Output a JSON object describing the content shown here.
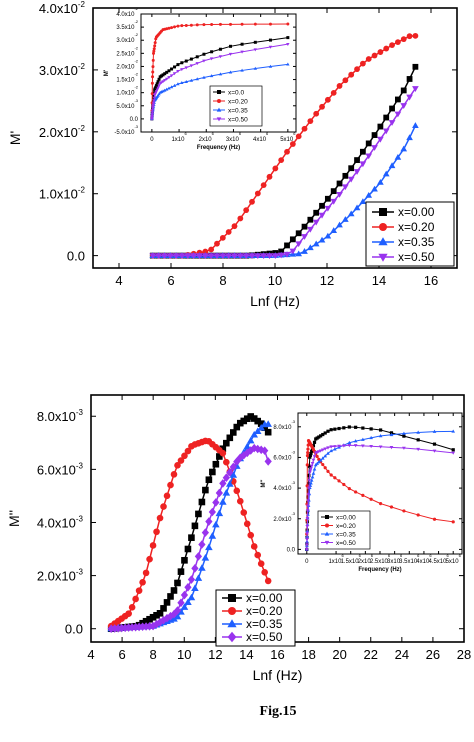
{
  "caption": "Fig.15",
  "chart_data": [
    {
      "type": "scatter",
      "ylabel": "M'",
      "xlabel": "Lnf (Hz)",
      "xlim": [
        3,
        17
      ],
      "ylim": [
        -0.002,
        0.04
      ],
      "x_ticks": [
        "4",
        "6",
        "8",
        "10",
        "12",
        "14",
        "16"
      ],
      "y_ticks": [
        {
          "v": 0,
          "m": "0.0",
          "e": ""
        },
        {
          "v": 0.01,
          "m": "1.0x10",
          "e": "-2"
        },
        {
          "v": 0.02,
          "m": "2.0x10",
          "e": "-2"
        },
        {
          "v": 0.03,
          "m": "3.0x10",
          "e": "-2"
        },
        {
          "v": 0.04,
          "m": "4.0x10",
          "e": "-2"
        }
      ],
      "legend_position": "bottom-right",
      "series": [
        {
          "name": "x=0.00",
          "color": "#000000",
          "marker": "square",
          "x_start": 5.3,
          "x_end": 15.4,
          "points": [
            [
              5.3,
              0
            ],
            [
              9.0,
              0
            ],
            [
              10.2,
              0.0005
            ],
            [
              11,
              0.004
            ],
            [
              12,
              0.009
            ],
            [
              13,
              0.0145
            ],
            [
              14,
              0.0205
            ],
            [
              15,
              0.027
            ],
            [
              15.4,
              0.0305
            ]
          ]
        },
        {
          "name": "x=0.20",
          "color": "#ee2222",
          "marker": "circle",
          "x_start": 5.3,
          "x_end": 15.4,
          "points": [
            [
              5.3,
              0
            ],
            [
              6.5,
              0
            ],
            [
              7.5,
              0.0008
            ],
            [
              8.5,
              0.005
            ],
            [
              9.5,
              0.011
            ],
            [
              10.5,
              0.017
            ],
            [
              11.5,
              0.0225
            ],
            [
              12.5,
              0.0275
            ],
            [
              13.5,
              0.0315
            ],
            [
              14.5,
              0.034
            ],
            [
              15.2,
              0.0355
            ],
            [
              15.4,
              0.0355
            ]
          ]
        },
        {
          "name": "x=0.35",
          "color": "#1f5fff",
          "marker": "triangle-up",
          "x_start": 5.3,
          "x_end": 15.4,
          "points": [
            [
              5.3,
              0
            ],
            [
              10,
              0
            ],
            [
              11,
              0.0003
            ],
            [
              12,
              0.003
            ],
            [
              13,
              0.007
            ],
            [
              14,
              0.0115
            ],
            [
              15,
              0.0175
            ],
            [
              15.4,
              0.021
            ]
          ]
        },
        {
          "name": "x=0.50",
          "color": "#9933ee",
          "marker": "triangle-down",
          "x_start": 5.3,
          "x_end": 15.4,
          "points": [
            [
              5.3,
              0
            ],
            [
              10,
              0
            ],
            [
              10.6,
              0.0003
            ],
            [
              11.5,
              0.005
            ],
            [
              12.5,
              0.01
            ],
            [
              13.5,
              0.0155
            ],
            [
              14.5,
              0.0215
            ],
            [
              15.4,
              0.027
            ]
          ]
        }
      ]
    },
    {
      "type": "scatter",
      "inset_of": 0,
      "ylabel": "M'",
      "xlabel": "Frequency (Hz)",
      "xlim": [
        -400000,
        5300000
      ],
      "ylim": [
        -0.005,
        0.04
      ],
      "x_ticks": [
        {
          "v": 0,
          "m": "0",
          "e": ""
        },
        {
          "v": 1000000,
          "m": "1x10",
          "e": "6"
        },
        {
          "v": 2000000,
          "m": "2x10",
          "e": "6"
        },
        {
          "v": 3000000,
          "m": "3x10",
          "e": "6"
        },
        {
          "v": 4000000,
          "m": "4x10",
          "e": "6"
        },
        {
          "v": 5000000,
          "m": "5x10",
          "e": "6"
        }
      ],
      "y_ticks": [
        {
          "v": -0.005,
          "m": "-5.0x10",
          "e": "-3"
        },
        {
          "v": 0,
          "m": "0.0",
          "e": ""
        },
        {
          "v": 0.005,
          "m": "5.0x10",
          "e": "-3"
        },
        {
          "v": 0.01,
          "m": "1.0x10",
          "e": "-2"
        },
        {
          "v": 0.015,
          "m": "1.5x10",
          "e": "-2"
        },
        {
          "v": 0.02,
          "m": "2.0x10",
          "e": "-2"
        },
        {
          "v": 0.025,
          "m": "2.5x10",
          "e": "-2"
        },
        {
          "v": 0.03,
          "m": "3.0x10",
          "e": "-2"
        },
        {
          "v": 0.035,
          "m": "3.5x10",
          "e": "-2"
        },
        {
          "v": 0.04,
          "m": "4.0x10",
          "e": "-2"
        }
      ],
      "legend_position": "center",
      "series": [
        {
          "name": "x=0.0",
          "color": "#000000",
          "marker": "square",
          "points": [
            [
              0,
              0
            ],
            [
              30000,
              0.005
            ],
            [
              100000,
              0.011
            ],
            [
              300000,
              0.016
            ],
            [
              1000000,
              0.021
            ],
            [
              2000000,
              0.025
            ],
            [
              3000000,
              0.028
            ],
            [
              4000000,
              0.0295
            ],
            [
              5000000,
              0.031
            ]
          ]
        },
        {
          "name": "x=0.20",
          "color": "#ee2222",
          "marker": "circle",
          "points": [
            [
              0,
              0.0005
            ],
            [
              20000,
              0.015
            ],
            [
              60000,
              0.025
            ],
            [
              150000,
              0.031
            ],
            [
              400000,
              0.034
            ],
            [
              1000000,
              0.0355
            ],
            [
              2000000,
              0.036
            ],
            [
              5000000,
              0.0362
            ]
          ]
        },
        {
          "name": "x=0.35",
          "color": "#1f5fff",
          "marker": "triangle-up",
          "points": [
            [
              0,
              0
            ],
            [
              30000,
              0.003
            ],
            [
              100000,
              0.007
            ],
            [
              300000,
              0.01
            ],
            [
              1000000,
              0.0135
            ],
            [
              2000000,
              0.016
            ],
            [
              3000000,
              0.018
            ],
            [
              4000000,
              0.0195
            ],
            [
              5000000,
              0.0208
            ]
          ]
        },
        {
          "name": "x=0.50",
          "color": "#9933ee",
          "marker": "triangle-down",
          "points": [
            [
              0,
              0
            ],
            [
              30000,
              0.004
            ],
            [
              100000,
              0.009
            ],
            [
              300000,
              0.0135
            ],
            [
              1000000,
              0.0185
            ],
            [
              2000000,
              0.0225
            ],
            [
              3000000,
              0.025
            ],
            [
              4000000,
              0.0268
            ],
            [
              5000000,
              0.0285
            ]
          ]
        }
      ]
    },
    {
      "type": "scatter",
      "ylabel": "M''",
      "xlabel": "Lnf (Hz)",
      "xlim": [
        4,
        28
      ],
      "ylim": [
        -0.0005,
        0.0088
      ],
      "x_ticks": [
        "4",
        "6",
        "8",
        "10",
        "12",
        "14",
        "16",
        "18",
        "20",
        "22",
        "24",
        "26",
        "28"
      ],
      "y_ticks": [
        {
          "v": 0,
          "m": "0.0",
          "e": ""
        },
        {
          "v": 0.002,
          "m": "2.0x10",
          "e": "-3"
        },
        {
          "v": 0.004,
          "m": "4.0x10",
          "e": "-3"
        },
        {
          "v": 0.006,
          "m": "6.0x10",
          "e": "-3"
        },
        {
          "v": 0.008,
          "m": "8.0x10",
          "e": "-3"
        }
      ],
      "legend_position": "bottom-center",
      "series": [
        {
          "name": "x=0.00",
          "color": "#000000",
          "marker": "square",
          "points": [
            [
              5.3,
              0
            ],
            [
              7,
              0.0001
            ],
            [
              8.5,
              0.0006
            ],
            [
              9.5,
              0.0016
            ],
            [
              10.5,
              0.0035
            ],
            [
              11.5,
              0.0055
            ],
            [
              12.5,
              0.0068
            ],
            [
              13.5,
              0.0077
            ],
            [
              14.3,
              0.008
            ],
            [
              15,
              0.0077
            ],
            [
              15.4,
              0.0074
            ]
          ]
        },
        {
          "name": "x=0.20",
          "color": "#ee2222",
          "marker": "circle",
          "points": [
            [
              5.3,
              0.0001
            ],
            [
              6.5,
              0.0006
            ],
            [
              7.5,
              0.002
            ],
            [
              8.5,
              0.0043
            ],
            [
              9.5,
              0.0061
            ],
            [
              10.5,
              0.0069
            ],
            [
              11.5,
              0.0071
            ],
            [
              12.5,
              0.0066
            ],
            [
              13.5,
              0.005
            ],
            [
              14.5,
              0.0031
            ],
            [
              15.4,
              0.0018
            ]
          ]
        },
        {
          "name": "x=0.35",
          "color": "#1f5fff",
          "marker": "triangle-up",
          "points": [
            [
              5.3,
              0
            ],
            [
              8,
              0.0001
            ],
            [
              9.5,
              0.0004
            ],
            [
              10.5,
              0.0012
            ],
            [
              11.5,
              0.0029
            ],
            [
              12.5,
              0.0048
            ],
            [
              13.5,
              0.0063
            ],
            [
              14.5,
              0.0073
            ],
            [
              15.2,
              0.0077
            ],
            [
              15.4,
              0.0077
            ]
          ]
        },
        {
          "name": "x=0.50",
          "color": "#9933ee",
          "marker": "diamond",
          "points": [
            [
              5.3,
              0
            ],
            [
              8,
              0.0001
            ],
            [
              9.5,
              0.0006
            ],
            [
              10.5,
              0.0019
            ],
            [
              11.5,
              0.0039
            ],
            [
              12.5,
              0.0055
            ],
            [
              13.5,
              0.0064
            ],
            [
              14.5,
              0.0068
            ],
            [
              15.2,
              0.0067
            ],
            [
              15.4,
              0.0063
            ]
          ]
        }
      ]
    },
    {
      "type": "scatter",
      "inset_of": 2,
      "ylabel": "M''",
      "xlabel": "Frequency (Hz)",
      "xlim": [
        -300000,
        5300000
      ],
      "ylim": [
        -0.0003,
        0.0089
      ],
      "x_ticks": [
        {
          "v": 0,
          "m": "0",
          "e": ""
        },
        {
          "v": 1000000,
          "m": "1x10",
          "e": "6"
        },
        {
          "v": 1500000,
          "m": "1.5x10",
          "e": "6"
        },
        {
          "v": 2000000,
          "m": "2x10",
          "e": "6"
        },
        {
          "v": 2500000,
          "m": "2.5x10",
          "e": "6"
        },
        {
          "v": 3000000,
          "m": "3x10",
          "e": "6"
        },
        {
          "v": 3500000,
          "m": "3.5x10",
          "e": "6"
        },
        {
          "v": 4000000,
          "m": "4x10",
          "e": "6"
        },
        {
          "v": 4500000,
          "m": "4.5x10",
          "e": "6"
        },
        {
          "v": 5000000,
          "m": "5x10",
          "e": "6"
        }
      ],
      "y_ticks": [
        {
          "v": 0,
          "m": "0.0",
          "e": ""
        },
        {
          "v": 0.002,
          "m": "2.0x10",
          "e": "-3"
        },
        {
          "v": 0.004,
          "m": "4.0x10",
          "e": "-3"
        },
        {
          "v": 0.006,
          "m": "6.0x10",
          "e": "-3"
        },
        {
          "v": 0.008,
          "m": "8.0x10",
          "e": "-3"
        }
      ],
      "legend_position": "bottom-left",
      "series": [
        {
          "name": "x=0.00",
          "color": "#000000",
          "marker": "square",
          "points": [
            [
              0,
              0
            ],
            [
              30000,
              0.003
            ],
            [
              100000,
              0.006
            ],
            [
              300000,
              0.0072
            ],
            [
              800000,
              0.0078
            ],
            [
              1500000,
              0.008
            ],
            [
              2500000,
              0.0078
            ],
            [
              3500000,
              0.0073
            ],
            [
              4500000,
              0.0068
            ],
            [
              5000000,
              0.0065
            ]
          ]
        },
        {
          "name": "x=0.20",
          "color": "#ee2222",
          "marker": "circle",
          "points": [
            [
              0,
              0.001
            ],
            [
              20000,
              0.006
            ],
            [
              60000,
              0.0071
            ],
            [
              150000,
              0.0068
            ],
            [
              400000,
              0.0059
            ],
            [
              800000,
              0.0049
            ],
            [
              1500000,
              0.0039
            ],
            [
              2500000,
              0.003
            ],
            [
              3500000,
              0.0024
            ],
            [
              4500000,
              0.0019
            ],
            [
              5000000,
              0.0018
            ]
          ]
        },
        {
          "name": "x=0.35",
          "color": "#1f5fff",
          "marker": "triangle-up",
          "points": [
            [
              0,
              0
            ],
            [
              30000,
              0.002
            ],
            [
              100000,
              0.004
            ],
            [
              300000,
              0.0055
            ],
            [
              800000,
              0.0064
            ],
            [
              1500000,
              0.007
            ],
            [
              2500000,
              0.0074
            ],
            [
              3500000,
              0.0076
            ],
            [
              4500000,
              0.0077
            ],
            [
              5000000,
              0.0077
            ]
          ]
        },
        {
          "name": "x=0.50",
          "color": "#9933ee",
          "marker": "triangle-down",
          "points": [
            [
              0,
              0
            ],
            [
              30000,
              0.0025
            ],
            [
              100000,
              0.005
            ],
            [
              300000,
              0.0063
            ],
            [
              800000,
              0.0067
            ],
            [
              1500000,
              0.0068
            ],
            [
              2500000,
              0.0067
            ],
            [
              3500000,
              0.0066
            ],
            [
              4500000,
              0.0064
            ],
            [
              5000000,
              0.0063
            ]
          ]
        }
      ]
    }
  ]
}
